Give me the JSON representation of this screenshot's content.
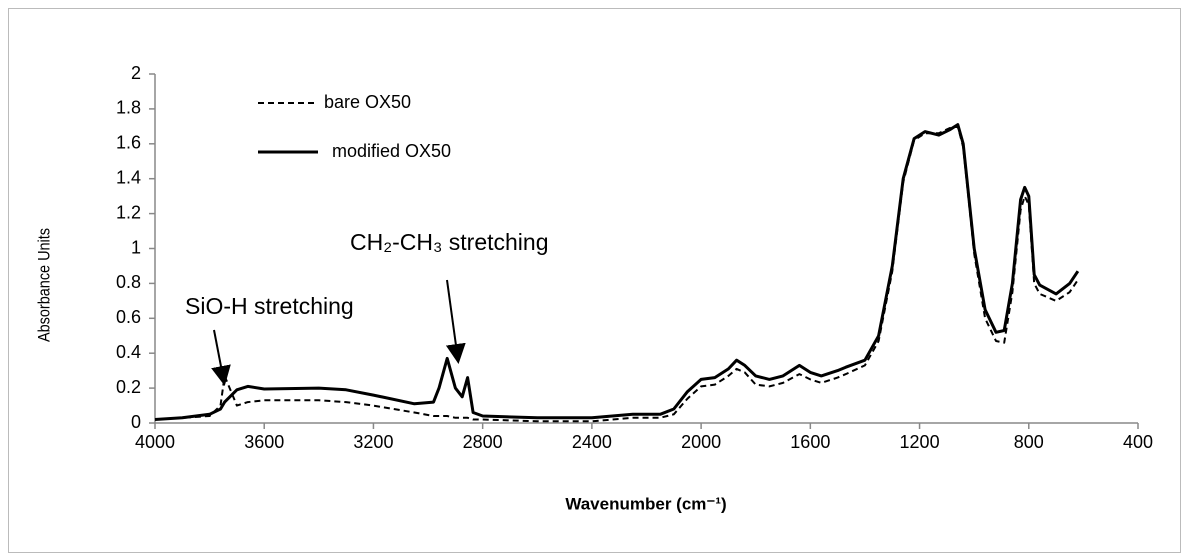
{
  "chart_data": {
    "type": "line",
    "xlabel": "Wavenumber (cm⁻¹)",
    "ylabel": "Absorbance Units",
    "annotations": [
      "SiO-H stretching",
      "CH₂-CH₃ stretching"
    ],
    "x": [
      4000,
      3900,
      3800,
      3760,
      3745,
      3700,
      3660,
      3600,
      3400,
      3300,
      3200,
      3050,
      2980,
      2960,
      2930,
      2900,
      2875,
      2855,
      2835,
      2800,
      2600,
      2400,
      2250,
      2150,
      2100,
      2050,
      2000,
      1950,
      1900,
      1870,
      1840,
      1800,
      1750,
      1700,
      1640,
      1600,
      1560,
      1500,
      1470,
      1400,
      1350,
      1300,
      1260,
      1220,
      1180,
      1130,
      1090,
      1060,
      1040,
      1000,
      960,
      920,
      890,
      860,
      830,
      815,
      800,
      780,
      760,
      700,
      650,
      620
    ],
    "series": [
      {
        "name": "bare OX50",
        "color": "#000000",
        "dash": true,
        "values": [
          0.02,
          0.03,
          0.04,
          0.1,
          0.27,
          0.1,
          0.12,
          0.13,
          0.13,
          0.12,
          0.1,
          0.06,
          0.04,
          0.04,
          0.04,
          0.03,
          0.03,
          0.03,
          0.02,
          0.02,
          0.01,
          0.01,
          0.03,
          0.03,
          0.05,
          0.14,
          0.21,
          0.22,
          0.27,
          0.31,
          0.29,
          0.22,
          0.21,
          0.23,
          0.28,
          0.25,
          0.23,
          0.26,
          0.28,
          0.33,
          0.47,
          0.87,
          1.38,
          1.62,
          1.66,
          1.66,
          1.69,
          1.7,
          1.58,
          0.97,
          0.6,
          0.47,
          0.46,
          0.75,
          1.22,
          1.3,
          1.25,
          0.8,
          0.74,
          0.7,
          0.75,
          0.82
        ]
      },
      {
        "name": "modified OX50",
        "color": "#000000",
        "dash": false,
        "values": [
          0.02,
          0.03,
          0.05,
          0.08,
          0.12,
          0.19,
          0.21,
          0.195,
          0.2,
          0.19,
          0.16,
          0.11,
          0.12,
          0.2,
          0.37,
          0.2,
          0.15,
          0.26,
          0.06,
          0.04,
          0.03,
          0.03,
          0.05,
          0.05,
          0.08,
          0.18,
          0.25,
          0.26,
          0.31,
          0.36,
          0.33,
          0.27,
          0.25,
          0.27,
          0.33,
          0.29,
          0.27,
          0.3,
          0.32,
          0.36,
          0.5,
          0.9,
          1.4,
          1.63,
          1.67,
          1.65,
          1.68,
          1.71,
          1.6,
          1.0,
          0.65,
          0.52,
          0.53,
          0.8,
          1.28,
          1.35,
          1.3,
          0.85,
          0.79,
          0.74,
          0.8,
          0.87
        ]
      }
    ],
    "xlim": [
      4000,
      400
    ],
    "xticks": [
      4000,
      3600,
      3200,
      2800,
      2400,
      2000,
      1600,
      1200,
      800,
      400
    ],
    "ylim": [
      0,
      2
    ],
    "yticks": [
      0,
      0.2,
      0.4,
      0.6,
      0.8,
      1,
      1.2,
      1.4,
      1.6,
      1.8,
      2
    ],
    "legend": "upper left",
    "grid": false
  }
}
